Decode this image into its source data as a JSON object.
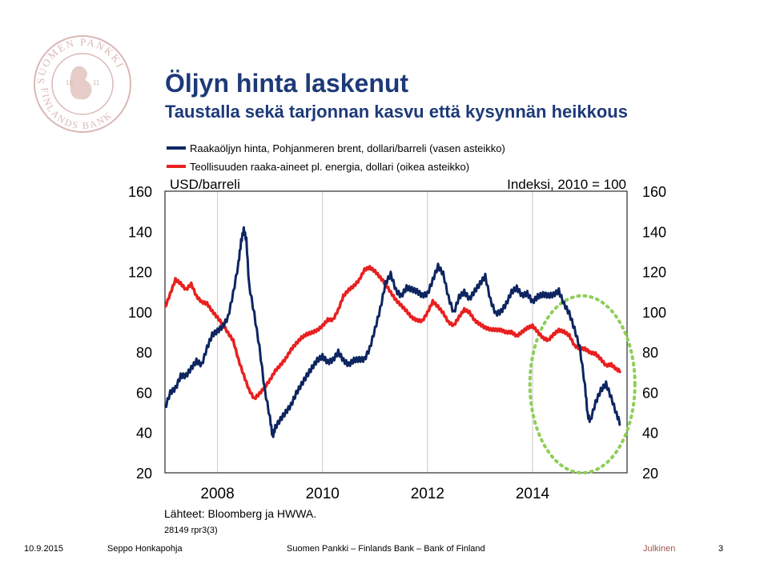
{
  "slide": {
    "title": "Öljyn hinta laskenut",
    "subtitle": "Taustalla sekä tarjonnan kasvu että kysynnän heikkous",
    "source": "Lähteet: Bloomberg ja HWWA.",
    "code": "28149 rpr3(3)",
    "footer": {
      "date": "10.9.2015",
      "author": "Seppo Honkapohja",
      "org": "Suomen Pankki – Finlands Bank – Bank of Finland",
      "classification": "Julkinen",
      "page": "3"
    }
  },
  "colors": {
    "title": "#1d3a78",
    "brent": "#0d2560",
    "industrial": "#e8201f",
    "ellipse": "#8fce5a",
    "logo": "#d9b8b4",
    "classification": "#a0554a"
  },
  "chart_data": {
    "type": "line",
    "left_axis_label": "USD/barreli",
    "right_axis_label": "Indeksi, 2010 = 100",
    "ylim": [
      20,
      160
    ],
    "yticks": [
      "160",
      "140",
      "120",
      "100",
      "80",
      "60",
      "40",
      "20"
    ],
    "xlim": [
      2007.0,
      2015.8
    ],
    "xticks": [
      {
        "x": 2008,
        "label": "2008"
      },
      {
        "x": 2010,
        "label": "2010"
      },
      {
        "x": 2012,
        "label": "2012"
      },
      {
        "x": 2014,
        "label": "2014"
      }
    ],
    "grid": true,
    "legend_position": "top-left",
    "series": [
      {
        "name": "Raakaöljyn hinta, Pohjanmeren brent, dollari/barreli (vasen asteikko)",
        "axis": "left",
        "x": [
          2007.0,
          2007.1,
          2007.2,
          2007.3,
          2007.4,
          2007.5,
          2007.6,
          2007.7,
          2007.8,
          2007.9,
          2008.0,
          2008.1,
          2008.2,
          2008.3,
          2008.4,
          2008.45,
          2008.5,
          2008.55,
          2008.6,
          2008.7,
          2008.8,
          2008.9,
          2009.0,
          2009.05,
          2009.1,
          2009.2,
          2009.3,
          2009.4,
          2009.5,
          2009.6,
          2009.7,
          2009.8,
          2009.9,
          2010.0,
          2010.1,
          2010.2,
          2010.3,
          2010.4,
          2010.5,
          2010.6,
          2010.7,
          2010.8,
          2010.9,
          2011.0,
          2011.1,
          2011.2,
          2011.3,
          2011.4,
          2011.5,
          2011.6,
          2011.7,
          2011.8,
          2011.9,
          2012.0,
          2012.1,
          2012.2,
          2012.3,
          2012.4,
          2012.5,
          2012.6,
          2012.7,
          2012.8,
          2012.9,
          2013.0,
          2013.1,
          2013.2,
          2013.3,
          2013.4,
          2013.5,
          2013.6,
          2013.7,
          2013.8,
          2013.9,
          2014.0,
          2014.1,
          2014.2,
          2014.3,
          2014.4,
          2014.5,
          2014.6,
          2014.7,
          2014.8,
          2014.9,
          2015.0,
          2015.05,
          2015.1,
          2015.2,
          2015.3,
          2015.4,
          2015.5,
          2015.6,
          2015.68
        ],
        "y": [
          52,
          58,
          60,
          68,
          70,
          74,
          76,
          72,
          80,
          88,
          92,
          95,
          98,
          108,
          122,
          134,
          142,
          138,
          115,
          98,
          80,
          60,
          48,
          40,
          44,
          46,
          48,
          52,
          60,
          66,
          70,
          72,
          74,
          76,
          75,
          78,
          82,
          76,
          72,
          74,
          76,
          78,
          84,
          92,
          100,
          112,
          118,
          112,
          110,
          113,
          110,
          108,
          107,
          110,
          118,
          124,
          118,
          105,
          98,
          108,
          112,
          108,
          110,
          112,
          116,
          106,
          101,
          102,
          104,
          108,
          110,
          108,
          111,
          107,
          108,
          107,
          106,
          108,
          112,
          106,
          100,
          90,
          80,
          62,
          50,
          48,
          56,
          60,
          62,
          56,
          50,
          46
        ]
      },
      {
        "name": "Teollisuuden raaka-aineet pl. energia, dollari (oikea asteikko)",
        "axis": "right",
        "x": [
          2007.0,
          2007.1,
          2007.2,
          2007.3,
          2007.4,
          2007.5,
          2007.6,
          2007.7,
          2007.8,
          2007.9,
          2008.0,
          2008.1,
          2008.2,
          2008.3,
          2008.4,
          2008.5,
          2008.6,
          2008.7,
          2008.8,
          2008.9,
          2009.0,
          2009.1,
          2009.2,
          2009.3,
          2009.4,
          2009.5,
          2009.6,
          2009.7,
          2009.8,
          2009.9,
          2010.0,
          2010.1,
          2010.2,
          2010.3,
          2010.4,
          2010.5,
          2010.6,
          2010.7,
          2010.8,
          2010.9,
          2011.0,
          2011.1,
          2011.2,
          2011.3,
          2011.4,
          2011.5,
          2011.6,
          2011.7,
          2011.8,
          2011.9,
          2012.0,
          2012.1,
          2012.2,
          2012.3,
          2012.4,
          2012.5,
          2012.6,
          2012.7,
          2012.8,
          2012.9,
          2013.0,
          2013.1,
          2013.2,
          2013.3,
          2013.4,
          2013.5,
          2013.6,
          2013.7,
          2013.8,
          2013.9,
          2014.0,
          2014.1,
          2014.2,
          2014.3,
          2014.4,
          2014.5,
          2014.6,
          2014.7,
          2014.8,
          2014.9,
          2015.0,
          2015.1,
          2015.2,
          2015.3,
          2015.4,
          2015.5,
          2015.6,
          2015.68
        ],
        "y": [
          102,
          108,
          115,
          114,
          112,
          115,
          108,
          104,
          103,
          100,
          98,
          95,
          90,
          85,
          75,
          68,
          62,
          58,
          60,
          62,
          65,
          70,
          74,
          78,
          82,
          84,
          86,
          88,
          90,
          92,
          94,
          96,
          95,
          100,
          108,
          112,
          114,
          116,
          120,
          121,
          120,
          118,
          115,
          110,
          105,
          102,
          100,
          98,
          97,
          96,
          99,
          104,
          102,
          100,
          96,
          94,
          97,
          100,
          99,
          96,
          95,
          93,
          91,
          90,
          90,
          90,
          91,
          89,
          90,
          91,
          92,
          90,
          88,
          87,
          89,
          90,
          89,
          88,
          84,
          83,
          82,
          79,
          78,
          76,
          74,
          75,
          72,
          70
        ]
      }
    ],
    "ellipse_highlight": {
      "x_range": [
        2013.95,
        2015.95
      ],
      "y_range": [
        20,
        108
      ]
    }
  }
}
